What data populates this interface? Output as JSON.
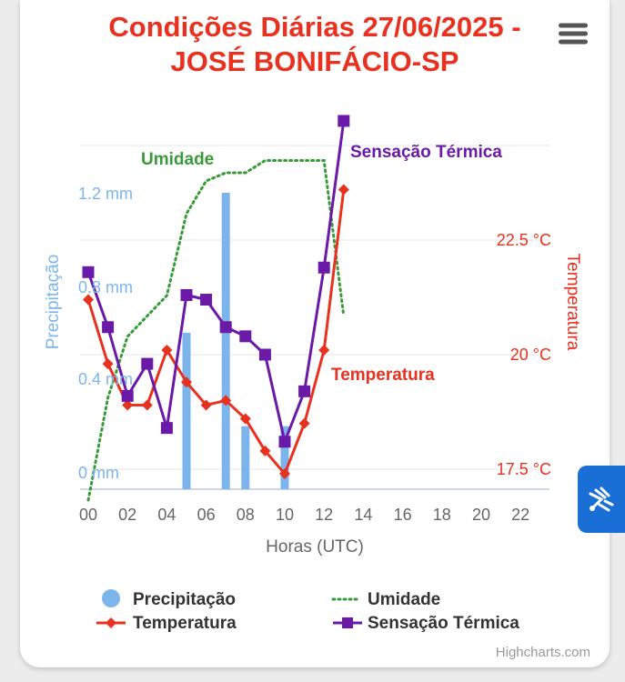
{
  "chart_data": {
    "type": "line",
    "title_lines": [
      "Condições Diárias 27/06/2025 -",
      "JOSÉ BONIFÁCIO-SP"
    ],
    "xlabel": "Horas (UTC)",
    "x_ticks": [
      "00",
      "02",
      "04",
      "06",
      "08",
      "10",
      "12",
      "14",
      "16",
      "18",
      "20",
      "22"
    ],
    "y_axes": [
      {
        "name": "Precipitação",
        "ticks": [
          "0 mm",
          "0.4 mm",
          "0.8 mm",
          "1.2 mm"
        ],
        "range": [
          0,
          1.6
        ],
        "color": "#7cb5ec"
      },
      {
        "name": "Temperatura",
        "ticks": [
          "17.5 °C",
          "20 °C",
          "22.5 °C"
        ],
        "range": [
          17.5,
          25
        ],
        "color": "#e8311f"
      }
    ],
    "series": [
      {
        "name": "Precipitação",
        "type": "column",
        "color": "#7cb5ec",
        "x": [
          0,
          1,
          2,
          3,
          4,
          5,
          6,
          7,
          8,
          9,
          10,
          11,
          12,
          13
        ],
        "values": [
          0,
          0,
          0,
          0,
          0,
          0.6,
          0,
          1.2,
          0.2,
          0,
          0.2,
          0,
          0,
          0
        ]
      },
      {
        "name": "Umidade",
        "type": "line",
        "dash": "dot",
        "color": "#3a9a3a",
        "x": [
          0,
          1,
          2,
          3,
          4,
          5,
          6,
          7,
          8,
          9,
          10,
          11,
          12,
          13
        ],
        "values": [
          10,
          35,
          50,
          55,
          60,
          80,
          88,
          90,
          90,
          93,
          93,
          93,
          93,
          55
        ]
      },
      {
        "name": "Temperatura",
        "type": "line",
        "marker": "diamond",
        "color": "#e8311f",
        "x": [
          0,
          1,
          2,
          3,
          4,
          5,
          6,
          7,
          8,
          9,
          10,
          11,
          12,
          13
        ],
        "values": [
          21.2,
          19.8,
          18.9,
          18.9,
          20.1,
          19.4,
          18.9,
          19.0,
          18.6,
          17.9,
          17.4,
          18.5,
          20.1,
          23.6
        ]
      },
      {
        "name": "Sensação Térmica",
        "type": "line",
        "marker": "square",
        "color": "#6a1aa6",
        "x": [
          0,
          1,
          2,
          3,
          4,
          5,
          6,
          7,
          8,
          9,
          10,
          11,
          12,
          13
        ],
        "values": [
          21.8,
          20.6,
          19.1,
          19.8,
          18.4,
          21.3,
          21.2,
          20.6,
          20.4,
          20.0,
          18.1,
          19.2,
          21.9,
          25.1
        ]
      }
    ],
    "legend_position": "bottom",
    "credits": "Highcharts.com"
  },
  "menu_icon": "hamburger-menu-icon",
  "accessibility_icon": "sign-language-icon"
}
